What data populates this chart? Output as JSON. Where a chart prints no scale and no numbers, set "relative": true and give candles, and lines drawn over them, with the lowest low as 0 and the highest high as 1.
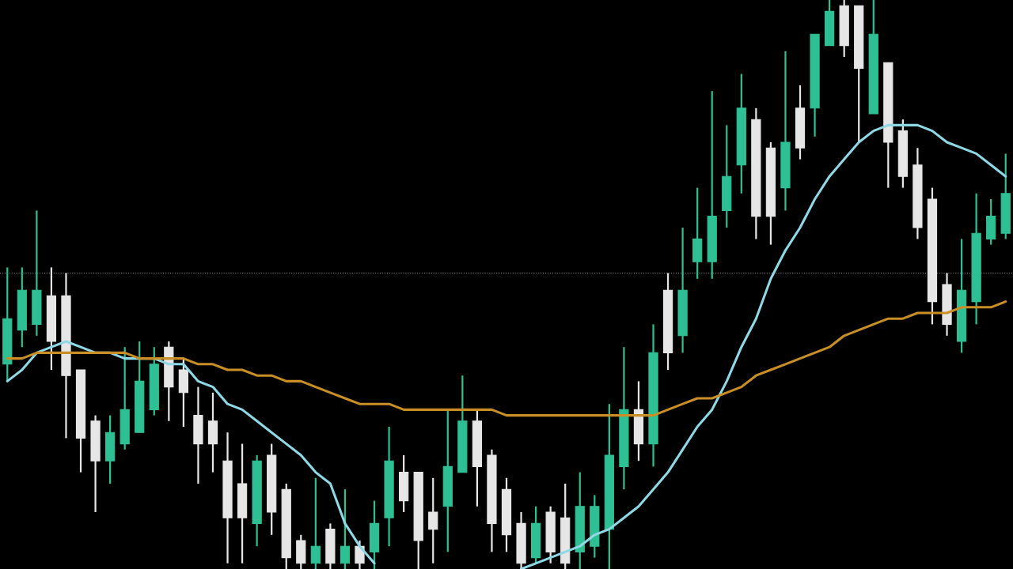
{
  "chart_data": {
    "type": "candlestick",
    "relative": true,
    "categories": [
      null,
      null,
      null,
      null,
      null,
      null,
      null,
      null,
      null,
      null,
      null,
      null,
      null,
      null,
      null,
      null,
      null,
      null,
      null,
      null,
      null,
      null,
      null,
      null,
      null,
      null,
      null,
      null,
      null,
      null,
      null,
      null,
      null,
      null,
      null,
      null,
      null,
      null,
      null,
      null,
      null,
      null,
      null,
      null,
      null,
      null,
      null,
      null,
      null,
      null,
      null,
      null,
      null,
      null,
      null,
      null,
      null,
      null,
      null,
      null,
      null,
      null,
      null,
      null,
      null,
      null,
      null,
      null,
      null
    ],
    "ohlc": [
      [
        0.36,
        0.53,
        0.33,
        0.44
      ],
      [
        0.42,
        0.53,
        0.39,
        0.49
      ],
      [
        0.43,
        0.63,
        0.41,
        0.49
      ],
      [
        0.48,
        0.53,
        0.35,
        0.4
      ],
      [
        0.48,
        0.52,
        0.23,
        0.34
      ],
      [
        0.35,
        0.35,
        0.17,
        0.23
      ],
      [
        0.26,
        0.27,
        0.1,
        0.19
      ],
      [
        0.19,
        0.27,
        0.15,
        0.24
      ],
      [
        0.22,
        0.39,
        0.21,
        0.28
      ],
      [
        0.24,
        0.4,
        0.24,
        0.33
      ],
      [
        0.28,
        0.39,
        0.27,
        0.36
      ],
      [
        0.39,
        0.4,
        0.26,
        0.32
      ],
      [
        0.35,
        0.37,
        0.25,
        0.31
      ],
      [
        0.27,
        0.32,
        0.15,
        0.22
      ],
      [
        0.26,
        0.31,
        0.17,
        0.22
      ],
      [
        0.19,
        0.24,
        0.01,
        0.09
      ],
      [
        0.15,
        0.22,
        0.01,
        0.09
      ],
      [
        0.08,
        0.2,
        0.04,
        0.19
      ],
      [
        0.2,
        0.22,
        0.06,
        0.1
      ],
      [
        0.14,
        0.15,
        0.0,
        0.02
      ],
      [
        0.05,
        0.06,
        0.0,
        0.01
      ],
      [
        0.01,
        0.16,
        0.0,
        0.04
      ],
      [
        0.07,
        0.08,
        0.0,
        0.01
      ],
      [
        0.01,
        0.14,
        0.0,
        0.04
      ],
      [
        0.04,
        0.05,
        0.0,
        0.01
      ],
      [
        0.03,
        0.12,
        0.0,
        0.08
      ],
      [
        0.09,
        0.25,
        0.04,
        0.19
      ],
      [
        0.17,
        0.2,
        0.1,
        0.12
      ],
      [
        0.17,
        0.17,
        0.0,
        0.05
      ],
      [
        0.1,
        0.16,
        0.01,
        0.07
      ],
      [
        0.11,
        0.28,
        0.03,
        0.18
      ],
      [
        0.17,
        0.34,
        0.17,
        0.26
      ],
      [
        0.26,
        0.28,
        0.11,
        0.18
      ],
      [
        0.2,
        0.21,
        0.03,
        0.08
      ],
      [
        0.14,
        0.16,
        0.03,
        0.06
      ],
      [
        0.08,
        0.1,
        0.0,
        0.01
      ],
      [
        0.02,
        0.11,
        0.01,
        0.08
      ],
      [
        0.1,
        0.11,
        0.01,
        0.03
      ],
      [
        0.09,
        0.15,
        0.0,
        0.01
      ],
      [
        0.03,
        0.17,
        0.0,
        0.11
      ],
      [
        0.04,
        0.13,
        0.02,
        0.11
      ],
      [
        0.07,
        0.29,
        0.0,
        0.2
      ],
      [
        0.18,
        0.39,
        0.14,
        0.28
      ],
      [
        0.28,
        0.33,
        0.19,
        0.22
      ],
      [
        0.22,
        0.43,
        0.18,
        0.38
      ],
      [
        0.49,
        0.52,
        0.35,
        0.38
      ],
      [
        0.41,
        0.6,
        0.38,
        0.49
      ],
      [
        0.54,
        0.67,
        0.51,
        0.58
      ],
      [
        0.54,
        0.84,
        0.51,
        0.62
      ],
      [
        0.63,
        0.78,
        0.6,
        0.69
      ],
      [
        0.71,
        0.87,
        0.66,
        0.81
      ],
      [
        0.79,
        0.81,
        0.58,
        0.62
      ],
      [
        0.74,
        0.75,
        0.57,
        0.62
      ],
      [
        0.67,
        0.91,
        0.63,
        0.75
      ],
      [
        0.81,
        0.85,
        0.72,
        0.74
      ],
      [
        0.81,
        0.94,
        0.76,
        0.94
      ],
      [
        0.92,
        1.0,
        0.92,
        0.98
      ],
      [
        0.99,
        1.0,
        0.9,
        0.92
      ],
      [
        0.99,
        0.99,
        0.75,
        0.88
      ],
      [
        0.8,
        1.0,
        0.8,
        0.94
      ],
      [
        0.89,
        0.89,
        0.67,
        0.75
      ],
      [
        0.77,
        0.79,
        0.67,
        0.69
      ],
      [
        0.71,
        0.74,
        0.58,
        0.6
      ],
      [
        0.65,
        0.67,
        0.43,
        0.47
      ],
      [
        0.5,
        0.52,
        0.41,
        0.43
      ],
      [
        0.4,
        0.58,
        0.38,
        0.49
      ],
      [
        0.47,
        0.66,
        0.43,
        0.59
      ],
      [
        0.58,
        0.65,
        0.57,
        0.62
      ],
      [
        0.59,
        0.73,
        0.58,
        0.66
      ]
    ],
    "colors": [
      "#2fbf94",
      "#2fbf94",
      "#2fbf94",
      "#e6e6e6",
      "#e6e6e6",
      "#e6e6e6",
      "#e6e6e6",
      "#2fbf94",
      "#2fbf94",
      "#2fbf94",
      "#2fbf94",
      "#e6e6e6",
      "#e6e6e6",
      "#e6e6e6",
      "#e6e6e6",
      "#e6e6e6",
      "#e6e6e6",
      "#2fbf94",
      "#e6e6e6",
      "#e6e6e6",
      "#e6e6e6",
      "#2fbf94",
      "#e6e6e6",
      "#2fbf94",
      "#e6e6e6",
      "#2fbf94",
      "#2fbf94",
      "#e6e6e6",
      "#e6e6e6",
      "#e6e6e6",
      "#2fbf94",
      "#2fbf94",
      "#e6e6e6",
      "#e6e6e6",
      "#e6e6e6",
      "#e6e6e6",
      "#2fbf94",
      "#e6e6e6",
      "#e6e6e6",
      "#2fbf94",
      "#2fbf94",
      "#2fbf94",
      "#2fbf94",
      "#e6e6e6",
      "#2fbf94",
      "#e6e6e6",
      "#2fbf94",
      "#2fbf94",
      "#2fbf94",
      "#2fbf94",
      "#2fbf94",
      "#e6e6e6",
      "#e6e6e6",
      "#2fbf94",
      "#e6e6e6",
      "#2fbf94",
      "#2fbf94",
      "#e6e6e6",
      "#e6e6e6",
      "#2fbf94",
      "#e6e6e6",
      "#e6e6e6",
      "#e6e6e6",
      "#e6e6e6",
      "#e6e6e6",
      "#2fbf94",
      "#2fbf94",
      "#2fbf94",
      "#2fbf94"
    ],
    "series": [
      {
        "type": "line",
        "color": "#8fd8e6",
        "values": [
          0.33,
          0.35,
          0.38,
          0.39,
          0.4,
          0.39,
          0.38,
          0.38,
          0.37,
          0.37,
          0.37,
          0.36,
          0.36,
          0.33,
          0.32,
          0.29,
          0.28,
          0.26,
          0.24,
          0.22,
          0.2,
          0.17,
          0.15,
          0.08,
          0.04,
          0.01,
          null,
          null,
          null,
          null,
          null,
          null,
          null,
          null,
          null,
          0.0,
          0.01,
          0.02,
          0.03,
          0.04,
          0.06,
          0.07,
          0.09,
          0.11,
          0.14,
          0.17,
          0.21,
          0.25,
          0.28,
          0.33,
          0.39,
          0.44,
          0.51,
          0.56,
          0.6,
          0.65,
          0.69,
          0.72,
          0.75,
          0.77,
          0.78,
          0.78,
          0.78,
          0.77,
          0.75,
          0.74,
          0.73,
          0.71,
          0.69
        ]
      },
      {
        "type": "line",
        "color": "#c98f26",
        "values": [
          0.37,
          0.37,
          0.38,
          0.38,
          0.38,
          0.38,
          0.38,
          0.38,
          0.38,
          0.37,
          0.37,
          0.37,
          0.37,
          0.36,
          0.36,
          0.35,
          0.35,
          0.34,
          0.34,
          0.33,
          0.33,
          0.32,
          0.31,
          0.3,
          0.29,
          0.29,
          0.29,
          0.28,
          0.28,
          0.28,
          0.28,
          0.28,
          0.28,
          0.28,
          0.27,
          0.27,
          0.27,
          0.27,
          0.27,
          0.27,
          0.27,
          0.27,
          0.27,
          0.27,
          0.27,
          0.28,
          0.29,
          0.3,
          0.3,
          0.31,
          0.32,
          0.34,
          0.35,
          0.36,
          0.37,
          0.38,
          0.39,
          0.41,
          0.42,
          0.43,
          0.44,
          0.44,
          0.45,
          0.45,
          0.45,
          0.46,
          0.46,
          0.46,
          0.47
        ]
      }
    ],
    "ref_lines": [
      {
        "axis": "y",
        "value": 0.52,
        "color": "#777777",
        "line_style": "dotted"
      }
    ]
  }
}
